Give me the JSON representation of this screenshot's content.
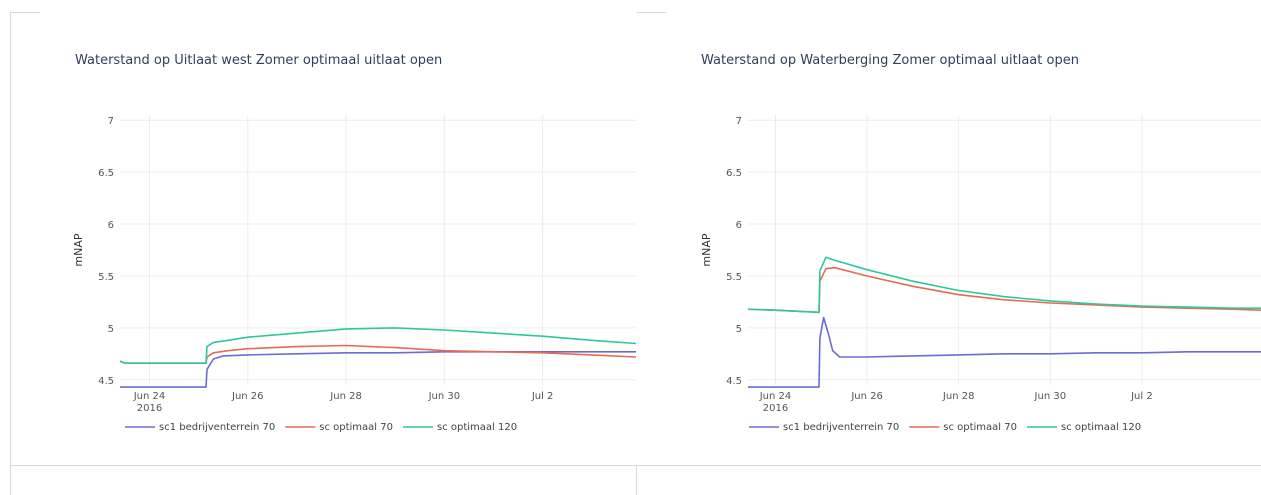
{
  "chart_data": [
    {
      "type": "line",
      "title": "Waterstand op Uitlaat west Zomer optimaal uitlaat open",
      "ylabel": "mNAP",
      "ylim": [
        4.45,
        7.05
      ],
      "yticks": [
        "4.5",
        "5",
        "5.5",
        "6",
        "6.5",
        "7"
      ],
      "ytick_values": [
        4.5,
        5,
        5.5,
        6,
        6.5,
        7
      ],
      "xlim": [
        23.4,
        33.9
      ],
      "xticks": [
        "Jun 24",
        "Jun 26",
        "Jun 28",
        "Jun 30",
        "Jul 2"
      ],
      "xtick_values": [
        24,
        26,
        28,
        30,
        32
      ],
      "xtick_year": "2016",
      "series": [
        {
          "name": "sc1 bedrijventerrein 70",
          "color": "#6b6bd6",
          "x": [
            23.4,
            25.15,
            25.17,
            25.3,
            25.5,
            26,
            27,
            28,
            29,
            30,
            31,
            32,
            33,
            33.9
          ],
          "y": [
            4.43,
            4.43,
            4.6,
            4.7,
            4.73,
            4.74,
            4.75,
            4.76,
            4.76,
            4.77,
            4.77,
            4.77,
            4.77,
            4.77
          ]
        },
        {
          "name": "sc optimaal 70",
          "color": "#e86a55",
          "x": [
            23.4,
            23.5,
            25.15,
            25.17,
            25.3,
            25.6,
            26,
            27,
            28,
            29,
            30,
            31,
            32,
            33,
            33.9
          ],
          "y": [
            4.68,
            4.66,
            4.66,
            4.72,
            4.76,
            4.78,
            4.8,
            4.82,
            4.83,
            4.81,
            4.78,
            4.77,
            4.76,
            4.74,
            4.72
          ]
        },
        {
          "name": "sc optimaal 120",
          "color": "#2fc79a",
          "x": [
            23.4,
            23.5,
            25.15,
            25.17,
            25.3,
            25.6,
            26,
            27,
            28,
            29,
            30,
            31,
            32,
            33,
            33.9
          ],
          "y": [
            4.68,
            4.66,
            4.66,
            4.82,
            4.86,
            4.88,
            4.91,
            4.95,
            4.99,
            5.0,
            4.98,
            4.95,
            4.92,
            4.88,
            4.85
          ]
        }
      ]
    },
    {
      "type": "line",
      "title": "Waterstand op Waterberging Zomer optimaal uitlaat open",
      "ylabel": "mNAP",
      "ylim": [
        4.45,
        7.05
      ],
      "yticks": [
        "4.5",
        "5",
        "5.5",
        "6",
        "6.5",
        "7"
      ],
      "ytick_values": [
        4.5,
        5,
        5.5,
        6,
        6.5,
        7
      ],
      "xlim": [
        23.4,
        34.6
      ],
      "xticks": [
        "Jun 24",
        "Jun 26",
        "Jun 28",
        "Jun 30",
        "Jul 2"
      ],
      "xtick_values": [
        24,
        26,
        28,
        30,
        32
      ],
      "xtick_year": "2016",
      "series": [
        {
          "name": "sc1 bedrijventerrein 70",
          "color": "#6b6bd6",
          "x": [
            23.4,
            24.95,
            24.97,
            25.05,
            25.15,
            25.25,
            25.4,
            26,
            27,
            28,
            29,
            30,
            31,
            32,
            33,
            34,
            34.6
          ],
          "y": [
            4.43,
            4.43,
            4.9,
            5.1,
            4.95,
            4.78,
            4.72,
            4.72,
            4.73,
            4.74,
            4.75,
            4.75,
            4.76,
            4.76,
            4.77,
            4.77,
            4.77
          ]
        },
        {
          "name": "sc optimaal 70",
          "color": "#e86a55",
          "x": [
            23.4,
            24,
            24.95,
            24.97,
            25.1,
            25.3,
            26,
            27,
            28,
            29,
            30,
            31,
            32,
            33,
            34,
            34.6
          ],
          "y": [
            5.18,
            5.17,
            5.15,
            5.45,
            5.57,
            5.58,
            5.5,
            5.4,
            5.32,
            5.27,
            5.24,
            5.22,
            5.2,
            5.19,
            5.18,
            5.17
          ]
        },
        {
          "name": "sc optimaal 120",
          "color": "#2fc79a",
          "x": [
            23.4,
            24,
            24.95,
            24.97,
            25.1,
            25.3,
            26,
            27,
            28,
            29,
            30,
            31,
            32,
            33,
            34,
            34.6
          ],
          "y": [
            5.18,
            5.17,
            5.15,
            5.55,
            5.68,
            5.65,
            5.56,
            5.45,
            5.36,
            5.3,
            5.26,
            5.23,
            5.21,
            5.2,
            5.19,
            5.19
          ]
        }
      ]
    }
  ]
}
